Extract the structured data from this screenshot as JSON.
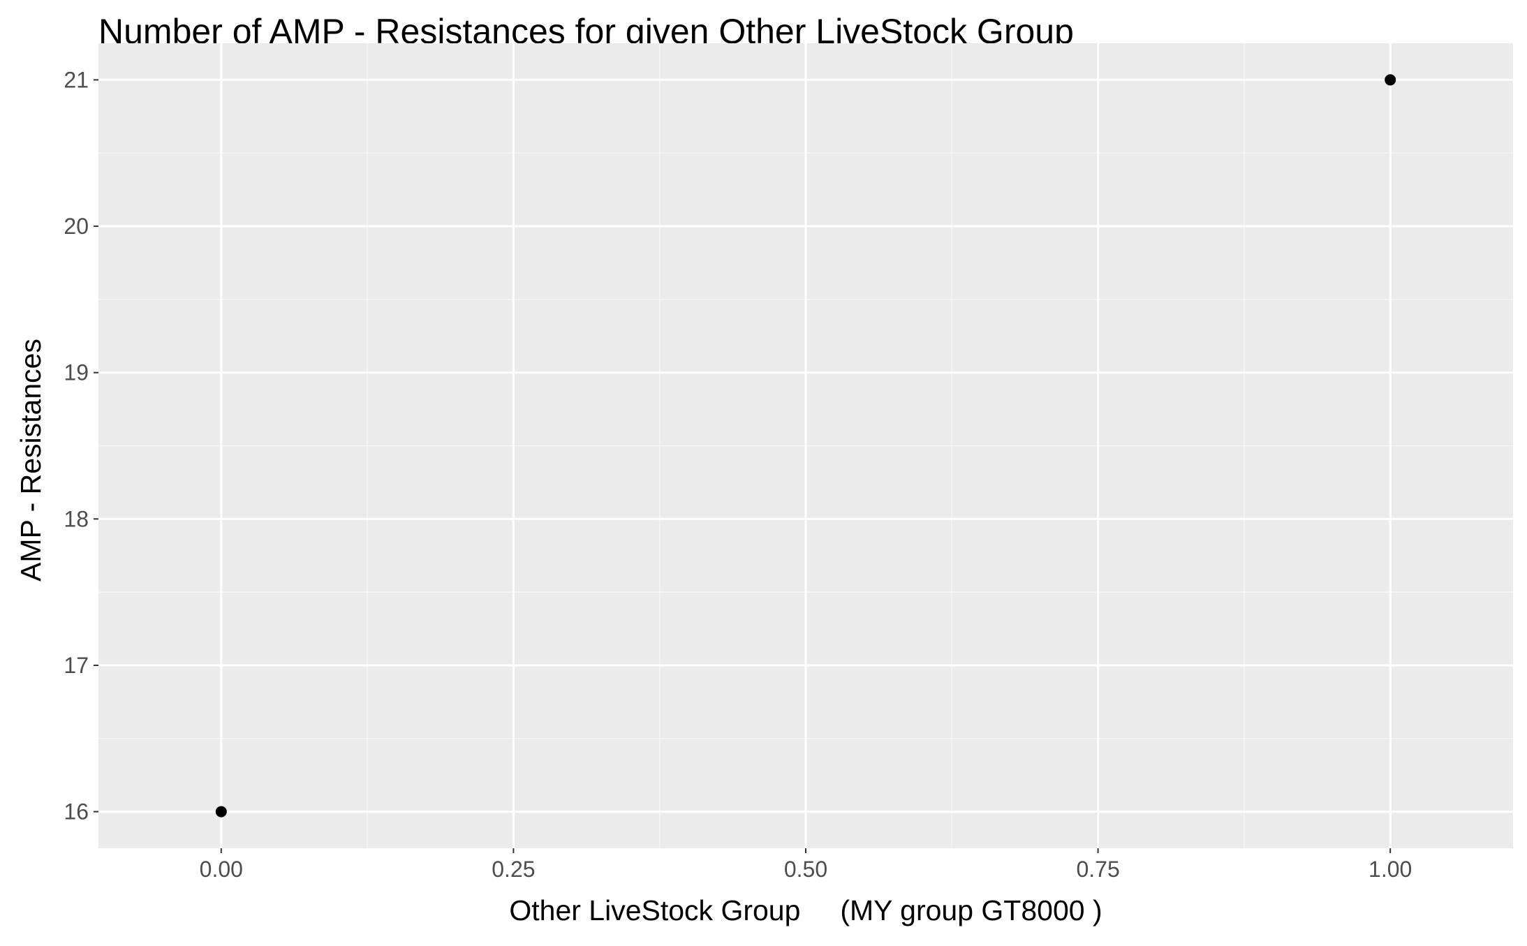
{
  "chart_data": {
    "type": "scatter",
    "title": "Number of AMP - Resistances for given Other LiveStock Group",
    "xlabel": "Other LiveStock Group     (MY group GT8000 )",
    "ylabel": "AMP - Resistances",
    "xlim": [
      -0.105,
      1.105
    ],
    "ylim": [
      15.75,
      21.25
    ],
    "x_ticks": [
      0.0,
      0.25,
      0.5,
      0.75,
      1.0
    ],
    "x_tick_labels": [
      "0.00",
      "0.25",
      "0.50",
      "0.75",
      "1.00"
    ],
    "y_ticks": [
      16,
      17,
      18,
      19,
      20,
      21
    ],
    "y_tick_labels": [
      "16",
      "17",
      "18",
      "19",
      "20",
      "21"
    ],
    "x_minor_ticks": [
      0.125,
      0.375,
      0.625,
      0.875
    ],
    "y_minor_ticks": [
      16.5,
      17.5,
      18.5,
      19.5,
      20.5
    ],
    "grid": true,
    "legend": "none",
    "series": [
      {
        "points": [
          {
            "x": 0.0,
            "y": 16
          },
          {
            "x": 1.0,
            "y": 21
          }
        ]
      }
    ],
    "colors": {
      "panel_background": "#ebebeb",
      "grid_major": "#ffffff",
      "grid_minor": "#f5f5f5",
      "point": "#000000",
      "tick_text": "#4d4d4d",
      "tick_mark": "#333333"
    }
  }
}
